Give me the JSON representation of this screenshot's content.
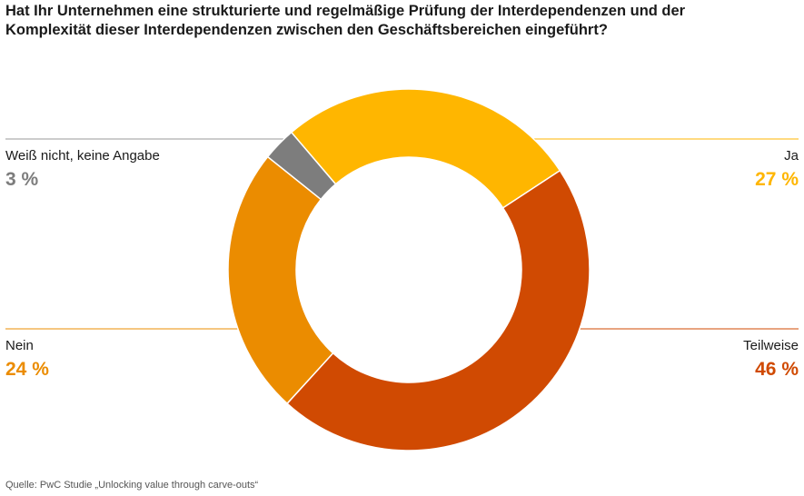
{
  "title_lines": [
    "Hat Ihr Unternehmen eine strukturierte und regelmäßige Prüfung der Interdependenzen und der",
    "Komplexität dieser Interdependenzen zwischen den Geschäftsbereichen eingeführt?"
  ],
  "source": "Quelle: PwC Studie „Unlocking value through carve-outs“",
  "chart_data": {
    "type": "pie",
    "variant": "donut",
    "title": "Hat Ihr Unternehmen eine strukturierte und regelmäßige Prüfung der Interdependenzen und der Komplexität dieser Interdependenzen zwischen den Geschäftsbereichen eingeführt?",
    "unit": "%",
    "slices": [
      {
        "label": "Ja",
        "value": 27,
        "display": "27 %",
        "color": "#FFB600"
      },
      {
        "label": "Teilweise",
        "value": 46,
        "display": "46 %",
        "color": "#D04A02"
      },
      {
        "label": "Nein",
        "value": 24,
        "display": "24 %",
        "color": "#EB8C00"
      },
      {
        "label": "Weiß nicht, keine Angabe",
        "value": 3,
        "display": "3 %",
        "color": "#7D7D7D"
      }
    ]
  }
}
